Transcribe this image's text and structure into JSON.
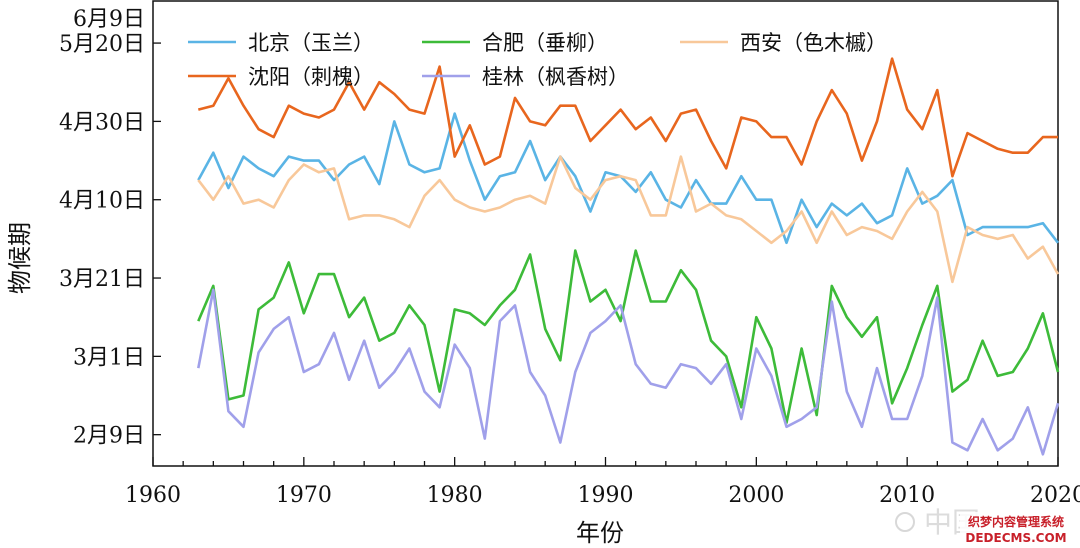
{
  "chart_data": {
    "type": "line",
    "title": "",
    "xlabel": "年份",
    "ylabel": "物候期",
    "xlim": [
      1960,
      2020
    ],
    "ylim": [
      -27,
      92
    ],
    "x_ticks": [
      1960,
      1970,
      1980,
      1990,
      2000,
      2010,
      2020
    ],
    "y_ticks": [
      {
        "value": -19,
        "label": "2月9日"
      },
      {
        "value": 1,
        "label": "3月1日"
      },
      {
        "value": 21,
        "label": "3月21日"
      },
      {
        "value": 41,
        "label": "4月10日"
      },
      {
        "value": 61,
        "label": "4月30日"
      },
      {
        "value": 81,
        "label": "5月20日"
      },
      {
        "value": 101,
        "label": "6月9日"
      }
    ],
    "grid": false,
    "legend_position": "top",
    "x": [
      1963,
      1964,
      1965,
      1966,
      1967,
      1968,
      1969,
      1970,
      1971,
      1972,
      1973,
      1974,
      1975,
      1976,
      1977,
      1978,
      1979,
      1980,
      1981,
      1982,
      1983,
      1984,
      1985,
      1986,
      1987,
      1988,
      1989,
      1990,
      1991,
      1992,
      1993,
      1994,
      1995,
      1996,
      1997,
      1998,
      1999,
      2000,
      2001,
      2002,
      2003,
      2004,
      2005,
      2006,
      2007,
      2008,
      2009,
      2010,
      2011,
      2012,
      2013,
      2014,
      2015,
      2016,
      2017,
      2018,
      2019,
      2020
    ],
    "series": [
      {
        "name": "北京（玉兰）",
        "color": "#5ab4e5",
        "values": [
          46,
          53,
          44,
          52,
          49,
          47,
          52,
          51,
          51,
          46,
          50,
          52,
          45,
          61,
          50,
          48,
          49,
          63,
          51,
          41,
          47,
          48,
          56,
          46,
          52,
          47,
          38,
          48,
          47,
          43,
          48,
          41,
          39,
          46,
          40,
          40,
          47,
          41,
          41,
          30,
          41,
          34,
          40,
          37,
          40,
          35,
          37,
          49,
          40,
          42,
          46,
          32,
          34,
          34,
          34,
          34,
          35,
          30
        ]
      },
      {
        "name": "合肥（垂柳）",
        "color": "#3dbb39",
        "values": [
          10,
          19,
          -10,
          -9,
          13,
          16,
          25,
          12,
          22,
          22,
          11,
          16,
          5,
          7,
          14,
          9,
          -8,
          13,
          12,
          9,
          14,
          18,
          27,
          8,
          0,
          28,
          15,
          18,
          10,
          28,
          15,
          15,
          23,
          18,
          5,
          1,
          -12,
          11,
          3,
          -16,
          3,
          -14,
          19,
          11,
          6,
          11,
          -11,
          -2,
          9,
          19,
          -8,
          -5,
          5,
          -4,
          -3,
          3,
          12,
          -3
        ]
      },
      {
        "name": "西安（色木槭）",
        "color": "#f8c89a",
        "values": [
          46,
          41,
          47,
          40,
          41,
          39,
          46,
          50,
          48,
          49,
          36,
          37,
          37,
          36,
          34,
          42,
          46,
          41,
          39,
          38,
          39,
          41,
          42,
          40,
          52,
          44,
          41,
          46,
          47,
          46,
          37,
          37,
          52,
          38,
          40,
          37,
          36,
          33,
          30,
          33,
          38,
          30,
          38,
          32,
          34,
          33,
          31,
          38,
          43,
          38,
          20,
          34,
          32,
          31,
          32,
          26,
          29,
          22
        ]
      },
      {
        "name": "沈阳（刺槐）",
        "color": "#e8661e",
        "values": [
          64,
          65,
          72,
          65,
          59,
          57,
          65,
          63,
          62,
          64,
          71,
          64,
          71,
          68,
          64,
          63,
          75,
          52,
          60,
          50,
          52,
          67,
          61,
          60,
          65,
          65,
          56,
          60,
          64,
          59,
          62,
          56,
          63,
          64,
          56,
          49,
          62,
          61,
          57,
          57,
          50,
          61,
          69,
          63,
          51,
          61,
          77,
          64,
          59,
          69,
          47,
          58,
          56,
          54,
          53,
          53,
          57,
          57
        ]
      },
      {
        "name": "桂林（枫香树）",
        "color": "#a0a0ea",
        "values": [
          -2,
          18,
          -13,
          -17,
          2,
          8,
          11,
          -3,
          -1,
          7,
          -5,
          5,
          -7,
          -3,
          3,
          -8,
          -12,
          4,
          -2,
          -20,
          10,
          14,
          -3,
          -9,
          -21,
          -3,
          7,
          10,
          14,
          -1,
          -6,
          -7,
          -1,
          -2,
          -6,
          -1,
          -15,
          3,
          -4,
          -17,
          -15,
          -12,
          15,
          -8,
          -17,
          -2,
          -15,
          -15,
          -4,
          16,
          -21,
          -23,
          -15,
          -23,
          -20,
          -12,
          -24,
          -11
        ]
      }
    ]
  },
  "watermark": {
    "brand": "中国",
    "line1": "织梦内容管理系统",
    "line2": "DEDECMS.COM"
  }
}
